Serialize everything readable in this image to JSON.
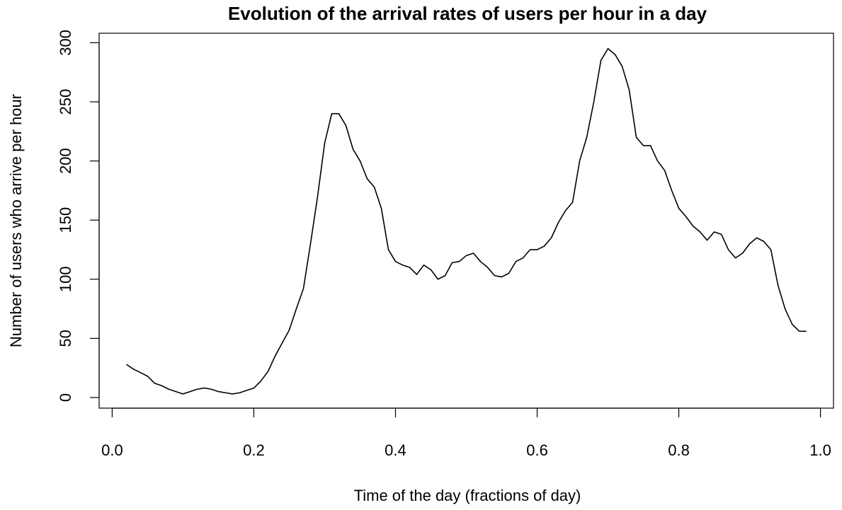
{
  "chart_data": {
    "type": "line",
    "title": "Evolution of the arrival rates of users per hour in a day",
    "xlabel": "Time of the day (fractions of day)",
    "ylabel": "Number of users who arrive per hour",
    "x": [
      0.02,
      0.03,
      0.04,
      0.05,
      0.06,
      0.07,
      0.08,
      0.09,
      0.1,
      0.11,
      0.12,
      0.13,
      0.14,
      0.15,
      0.16,
      0.17,
      0.18,
      0.19,
      0.2,
      0.21,
      0.22,
      0.23,
      0.24,
      0.25,
      0.26,
      0.27,
      0.28,
      0.29,
      0.3,
      0.31,
      0.32,
      0.33,
      0.34,
      0.35,
      0.36,
      0.37,
      0.38,
      0.39,
      0.4,
      0.41,
      0.42,
      0.43,
      0.44,
      0.45,
      0.46,
      0.47,
      0.48,
      0.49,
      0.5,
      0.51,
      0.52,
      0.53,
      0.54,
      0.55,
      0.56,
      0.57,
      0.58,
      0.59,
      0.6,
      0.61,
      0.62,
      0.63,
      0.64,
      0.65,
      0.66,
      0.67,
      0.68,
      0.69,
      0.7,
      0.71,
      0.72,
      0.73,
      0.74,
      0.75,
      0.76,
      0.77,
      0.78,
      0.79,
      0.8,
      0.81,
      0.82,
      0.83,
      0.84,
      0.85,
      0.86,
      0.87,
      0.88,
      0.89,
      0.9,
      0.91,
      0.92,
      0.93,
      0.94,
      0.95,
      0.96,
      0.97,
      0.98
    ],
    "series": [
      {
        "color": "#000000",
        "values": [
          28,
          24,
          21,
          18,
          12,
          10,
          7,
          5,
          3,
          5,
          7,
          8,
          7,
          5,
          4,
          3,
          4,
          6,
          8,
          14,
          22,
          35,
          46,
          57,
          75,
          92,
          130,
          170,
          215,
          240,
          240,
          230,
          210,
          200,
          185,
          178,
          160,
          125,
          115,
          112,
          110,
          104,
          112,
          108,
          100,
          103,
          114,
          115,
          120,
          122,
          115,
          110,
          103,
          102,
          105,
          115,
          118,
          125,
          125,
          128,
          135,
          148,
          158,
          165,
          200,
          220,
          250,
          285,
          295,
          290,
          280,
          260,
          220,
          213,
          213,
          200,
          192,
          175,
          160,
          153,
          145,
          140,
          133,
          140,
          138,
          125,
          118,
          122,
          130,
          135,
          132,
          125,
          95,
          75,
          62,
          56,
          56
        ]
      }
    ],
    "xlim": [
      -0.0184,
      1.0184
    ],
    "ylim": [
      -9,
      308
    ],
    "xticks": [
      {
        "value": 0,
        "label": "0.0"
      },
      0.2,
      0.4,
      0.6,
      0.8,
      {
        "value": 1,
        "label": "1.0"
      }
    ],
    "yticks": [
      0,
      50,
      100,
      150,
      200,
      250,
      300
    ],
    "grid": false
  }
}
